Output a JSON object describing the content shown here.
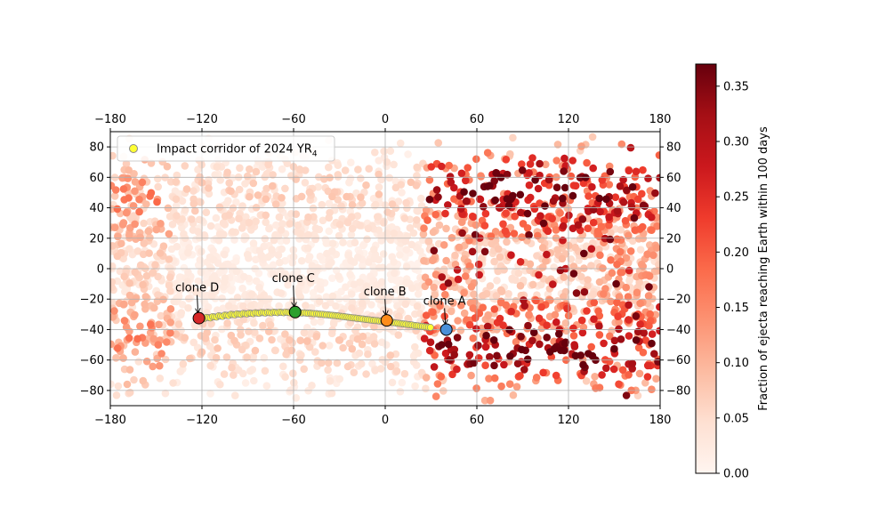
{
  "chart_data": {
    "type": "scatter",
    "title": "",
    "xlim": [
      -180,
      180
    ],
    "ylim": [
      -90,
      90
    ],
    "xticks": [
      -180,
      -120,
      -60,
      0,
      60,
      120,
      180
    ],
    "yticks": [
      -80,
      -60,
      -40,
      -20,
      0,
      20,
      40,
      60,
      80
    ],
    "xtick_labels": [
      "−180",
      "−120",
      "−60",
      "0",
      "60",
      "120",
      "180"
    ],
    "ytick_labels": [
      "−80",
      "−60",
      "−40",
      "−20",
      "0",
      "20",
      "40",
      "60",
      "80"
    ],
    "grid": true,
    "legend": {
      "position": "top-left",
      "label": "Impact corridor of 2024 YR",
      "label_subscript": "4"
    },
    "colorbar": {
      "label": "Fraction of ejecta reaching Earth within 100 days",
      "min": 0.0,
      "max": 0.37,
      "ticks": [
        0.0,
        0.05,
        0.1,
        0.15,
        0.2,
        0.25,
        0.3,
        0.35
      ],
      "tick_labels": [
        "0.00",
        "0.05",
        "0.10",
        "0.15",
        "0.20",
        "0.25",
        "0.30",
        "0.35"
      ],
      "colormap": "Reds"
    },
    "corridor": {
      "color": "#ffff33",
      "edge": "#888888",
      "points": [
        [
          -121,
          -32.5
        ],
        [
          -117,
          -32
        ],
        [
          -113,
          -31.5
        ],
        [
          -109,
          -31
        ],
        [
          -105,
          -30.5
        ],
        [
          -101,
          -30
        ],
        [
          -97,
          -29.7
        ],
        [
          -93,
          -29.4
        ],
        [
          -89,
          -29.2
        ],
        [
          -85,
          -29
        ],
        [
          -81,
          -28.8
        ],
        [
          -77,
          -28.7
        ],
        [
          -73,
          -28.6
        ],
        [
          -69,
          -28.6
        ],
        [
          -65,
          -28.6
        ],
        [
          -61,
          -28.7
        ],
        [
          -57,
          -28.8
        ],
        [
          -53,
          -29
        ],
        [
          -49,
          -29.3
        ],
        [
          -45,
          -29.6
        ],
        [
          -41,
          -30
        ],
        [
          -37,
          -30.4
        ],
        [
          -33,
          -30.8
        ],
        [
          -29,
          -31.3
        ],
        [
          -25,
          -31.8
        ],
        [
          -21,
          -32.3
        ],
        [
          -17,
          -32.8
        ],
        [
          -13,
          -33.3
        ],
        [
          -9,
          -33.8
        ],
        [
          -5,
          -34.2
        ],
        [
          -1,
          -34.7
        ],
        [
          3,
          -35.2
        ],
        [
          7,
          -35.7
        ],
        [
          11,
          -36.2
        ],
        [
          15,
          -36.7
        ],
        [
          19,
          -37.3
        ],
        [
          23,
          -37.8
        ],
        [
          27,
          -38.3
        ]
      ]
    },
    "clones": [
      {
        "name": "clone A",
        "lon": 40,
        "lat": -40,
        "color": "#4a90d9"
      },
      {
        "name": "clone B",
        "lon": 1,
        "lat": -34,
        "color": "#ff8c1a"
      },
      {
        "name": "clone C",
        "lon": -59,
        "lat": -28.5,
        "color": "#2ca02c"
      },
      {
        "name": "clone D",
        "lon": -122,
        "lat": -32.5,
        "color": "#d62728"
      }
    ],
    "ejecta_field_description": "Dense scatter over the full globe, colored by fraction; highest values (~0.30-0.35) cluster east of 30 lon in bands near lat 40-60 and -50 to -70."
  }
}
